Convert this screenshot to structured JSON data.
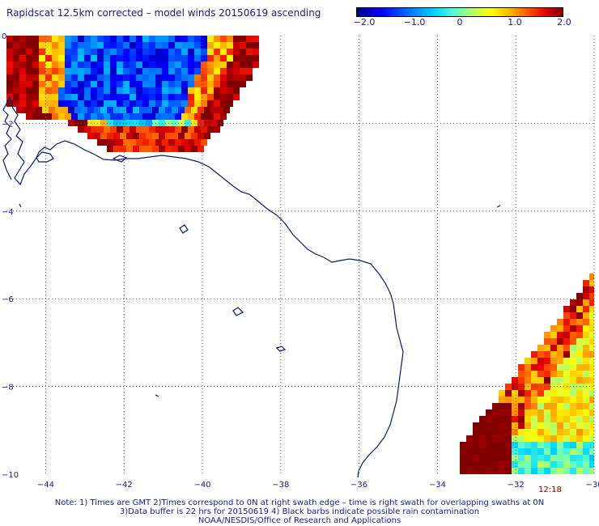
{
  "title": "Rapidscat 12.5km corrected – model winds 20150619 ascending",
  "colorbar": {
    "min": -2.0,
    "max": 2.0,
    "labels": [
      "−2.0",
      "−1.0",
      "0",
      "1.0",
      "2.0"
    ]
  },
  "axes": {
    "lon_min": -45,
    "lon_max": -30,
    "lat_min": -10,
    "lat_max": 0,
    "x_ticks": [
      "−44",
      "−42",
      "−40",
      "−38",
      "−36",
      "−34",
      "−32",
      "−30"
    ],
    "y_ticks": [
      "0",
      "−2",
      "−4",
      "−6",
      "−8",
      "−10"
    ]
  },
  "time_stamp": "12:18",
  "notes": [
    "Note: 1) Times are GMT 2)Times correspond to 0N at right swath edge – time is right swath for overlapping swaths at 0N",
    "3)Data buffer is 22 hrs for 20150619 4) Black barbs indicate possible rain contamination",
    "NOAA/NESDIS/Office of Research and Applications"
  ],
  "colors": {
    "coastline": "#0a1a6a",
    "grid": "#555555",
    "text": "#1a1a8a"
  }
}
